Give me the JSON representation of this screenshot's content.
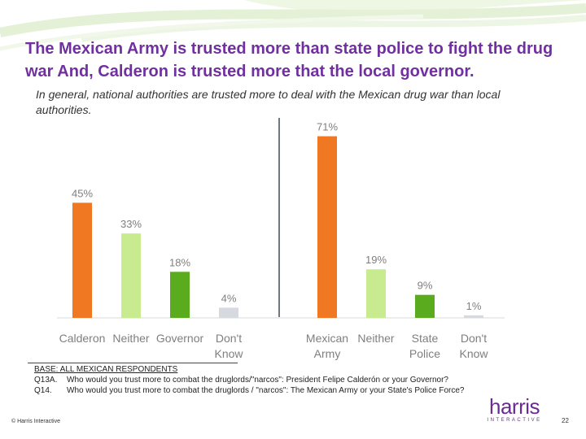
{
  "slide": {
    "title": "The Mexican Army is trusted more than state police to fight the drug war And, Calderon is trusted more that the local governor.",
    "subtitle": "In general, national authorities are trusted more to deal with the Mexican drug war than local authorities."
  },
  "colors": {
    "orange": "#f07823",
    "light_green": "#c9eb8f",
    "green": "#5aab1e",
    "gray": "#d6d9de",
    "divider": "#404a58"
  },
  "chart_data": {
    "type": "bar",
    "title": "",
    "xlabel": "",
    "ylabel": "",
    "ylim": [
      0,
      75
    ],
    "grid": false,
    "groups": [
      {
        "name": "Q13A",
        "categories": [
          [
            "Calderon"
          ],
          [
            "Neither"
          ],
          [
            "Governor"
          ],
          [
            "Don't",
            "Know"
          ]
        ],
        "values": [
          45,
          33,
          18,
          4
        ],
        "labels": [
          "45%",
          "33%",
          "18%",
          "4%"
        ],
        "colors": [
          "#f07823",
          "#c9eb8f",
          "#5aab1e",
          "#d6d9de"
        ]
      },
      {
        "name": "Q14",
        "categories": [
          [
            "Mexican",
            "Army"
          ],
          [
            "Neither"
          ],
          [
            "State",
            "Police"
          ],
          [
            "Don't",
            "Know"
          ]
        ],
        "values": [
          71,
          19,
          9,
          1
        ],
        "labels": [
          "71%",
          "19%",
          "9%",
          "1%"
        ],
        "colors": [
          "#f07823",
          "#c9eb8f",
          "#5aab1e",
          "#d6d9de"
        ]
      }
    ]
  },
  "footnotes": {
    "base": "BASE: ALL MEXICAN RESPONDENTS",
    "questions": [
      {
        "id": "Q13A.",
        "text": "Who would you trust more to combat the druglords/\"narcos\": President Felipe Calderón or your Governor?"
      },
      {
        "id": "Q14.",
        "text": "Who would you trust more to combat the druglords / \"narcos\": The Mexican Army or your State's Police Force?"
      }
    ]
  },
  "footer": {
    "copyright": "© Harris Interactive",
    "logo_main": "harris",
    "logo_sub": "INTERACTIVE",
    "page_number": "22"
  }
}
